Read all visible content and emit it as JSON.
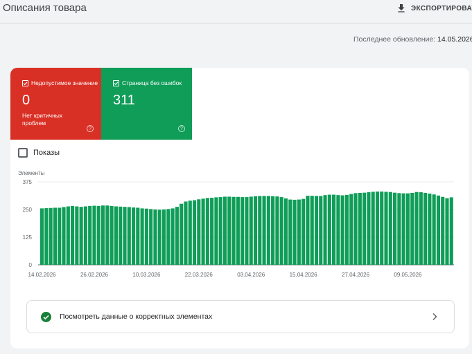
{
  "header": {
    "title": "Описания товара",
    "export_label": "ЭКСПОРТИРОВАТЬ"
  },
  "last_update": {
    "label": "Последнее обновление:",
    "date": "14.05.2026"
  },
  "tiles": [
    {
      "label": "Недопустимое значение",
      "count": "0",
      "sub": "Нет критичных проблем",
      "color": "#d93025",
      "checked": true
    },
    {
      "label": "Страница без ошибок",
      "count": "311",
      "sub": "",
      "color": "#0f9d58",
      "checked": true
    }
  ],
  "impressions": {
    "label": "Показы",
    "checked": false
  },
  "chart_data": {
    "type": "bar",
    "ylabel": "Элементы",
    "ylim": [
      0,
      375
    ],
    "yticks": [
      0,
      125,
      250,
      375
    ],
    "xtick_labels": [
      "14.02.2026",
      "26.02.2026",
      "10.03.2026",
      "22.03.2026",
      "03.04.2026",
      "15.04.2026",
      "27.04.2026",
      "09.05.2026"
    ],
    "series": [
      {
        "color": "#0f9d58",
        "values": [
          255,
          256,
          257,
          258,
          258,
          261,
          264,
          266,
          264,
          262,
          264,
          266,
          267,
          266,
          268,
          268,
          266,
          264,
          263,
          262,
          261,
          259,
          258,
          255,
          254,
          252,
          250,
          249,
          250,
          252,
          255,
          262,
          276,
          286,
          290,
          292,
          296,
          299,
          302,
          303,
          305,
          306,
          308,
          308,
          307,
          307,
          306,
          306,
          308,
          310,
          311,
          311,
          311,
          310,
          309,
          306,
          300,
          295,
          294,
          295,
          298,
          312,
          312,
          311,
          311,
          315,
          317,
          317,
          315,
          314,
          316,
          320,
          324,
          325,
          326,
          328,
          330,
          331,
          331,
          330,
          329,
          326,
          324,
          323,
          323,
          325,
          329,
          328,
          325,
          322,
          318,
          313,
          307,
          301,
          305
        ]
      }
    ]
  },
  "footer_link": {
    "label": "Посмотреть данные о корректных элементах"
  }
}
